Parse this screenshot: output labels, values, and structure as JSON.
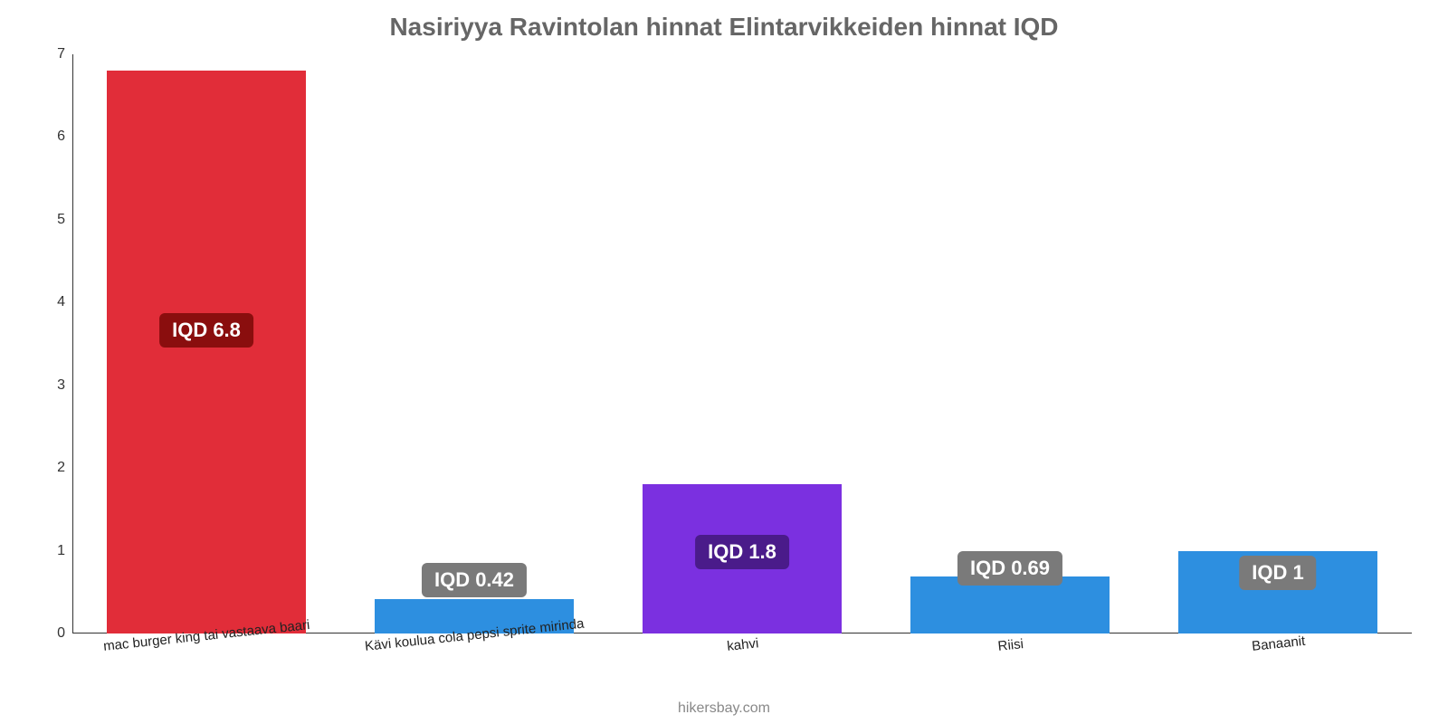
{
  "chart": {
    "type": "bar",
    "title": "Nasiriyya Ravintolan hinnat Elintarvikkeiden hinnat IQD",
    "title_color": "#666666",
    "title_fontsize": 28,
    "background_color": "#ffffff",
    "axis_color": "#333333",
    "label_fontsize": 15,
    "label_rotation_deg": -6,
    "footer": "hikersbay.com",
    "footer_color": "#888888",
    "ylim": [
      0,
      7
    ],
    "ytick_step": 1,
    "yticks": [
      "0",
      "1",
      "2",
      "3",
      "4",
      "5",
      "6",
      "7"
    ],
    "bar_width_pct": 74,
    "bars": [
      {
        "category": "mac burger king tai vastaava baari",
        "value": 6.8,
        "display": "IQD 6.8",
        "fill": "#e12d39",
        "badge_bg": "#8a0e0e",
        "badge_top_pct": 43
      },
      {
        "category": "Kävi koulua cola pepsi sprite mirinda",
        "value": 0.42,
        "display": "IQD 0.42",
        "fill": "#2d8fe0",
        "badge_bg": "#7a7a7a",
        "badge_top_pct": -9
      },
      {
        "category": "kahvi",
        "value": 1.8,
        "display": "IQD 1.8",
        "fill": "#7b30e0",
        "badge_bg": "#4a1b8a",
        "badge_top_pct": 34
      },
      {
        "category": "Riisi",
        "value": 0.69,
        "display": "IQD 0.69",
        "fill": "#2d8fe0",
        "badge_bg": "#7a7a7a",
        "badge_top_pct": -6
      },
      {
        "category": "Banaanit",
        "value": 1.0,
        "display": "IQD 1",
        "fill": "#2d8fe0",
        "badge_bg": "#7a7a7a",
        "badge_top_pct": 6
      }
    ]
  }
}
